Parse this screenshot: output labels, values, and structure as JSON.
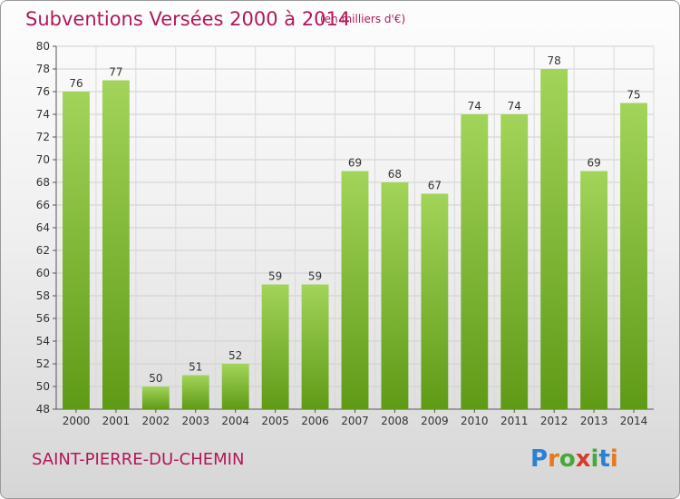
{
  "header": {
    "title": "Subventions Versées 2000 à 2014",
    "subtitle": "(en milliers d'€)"
  },
  "footer": {
    "commune": "SAINT-PIERRE-DU-CHEMIN",
    "logo": "Proxiti"
  },
  "colors": {
    "title": "#b0185a",
    "bar_light": "#a2d45a",
    "bar_dark": "#5f9a16",
    "logo_letters": [
      "#2c7fd1",
      "#e67a1a",
      "#47a83a",
      "#d63a2a",
      "#47a83a",
      "#2c7fd1",
      "#e67a1a"
    ]
  },
  "chart_data": {
    "type": "bar",
    "title": "Subventions Versées 2000 à 2014",
    "subtitle": "(en milliers d'€)",
    "categories": [
      "2000",
      "2001",
      "2002",
      "2003",
      "2004",
      "2005",
      "2006",
      "2007",
      "2008",
      "2009",
      "2010",
      "2011",
      "2012",
      "2013",
      "2014"
    ],
    "values": [
      76,
      77,
      50,
      51,
      52,
      59,
      59,
      69,
      68,
      67,
      74,
      74,
      78,
      69,
      75
    ],
    "ylim": [
      48,
      80
    ],
    "yticks": [
      48,
      50,
      52,
      54,
      56,
      58,
      60,
      62,
      64,
      66,
      68,
      70,
      72,
      74,
      76,
      78,
      80
    ],
    "grid": true,
    "legend": "none",
    "xlabel": "",
    "ylabel": ""
  }
}
